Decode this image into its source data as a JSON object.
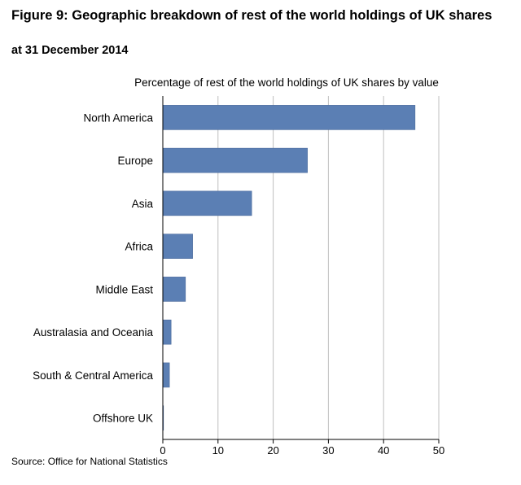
{
  "figure": {
    "title": "Figure 9: Geographic breakdown of rest of the world holdings of UK shares",
    "subtitle": "at 31 December 2014",
    "source": "Source: Office for National Statistics"
  },
  "chart_data": {
    "type": "bar",
    "orientation": "horizontal",
    "title": "Percentage of rest of the world holdings of UK shares by value",
    "categories": [
      "North America",
      "Europe",
      "Asia",
      "Africa",
      "Middle East",
      "Australasia and Oceania",
      "South & Central America",
      "Offshore UK"
    ],
    "values": [
      45.7,
      26.2,
      16.1,
      5.4,
      4.1,
      1.5,
      1.2,
      0.1
    ],
    "xlim": [
      0,
      50
    ],
    "xticks": [
      "0",
      "10",
      "20",
      "30",
      "40",
      "50"
    ],
    "xlabel": "",
    "ylabel": "",
    "grid": true,
    "bar_color": "#5b7fb4",
    "grid_color": "#bfbfbf"
  }
}
